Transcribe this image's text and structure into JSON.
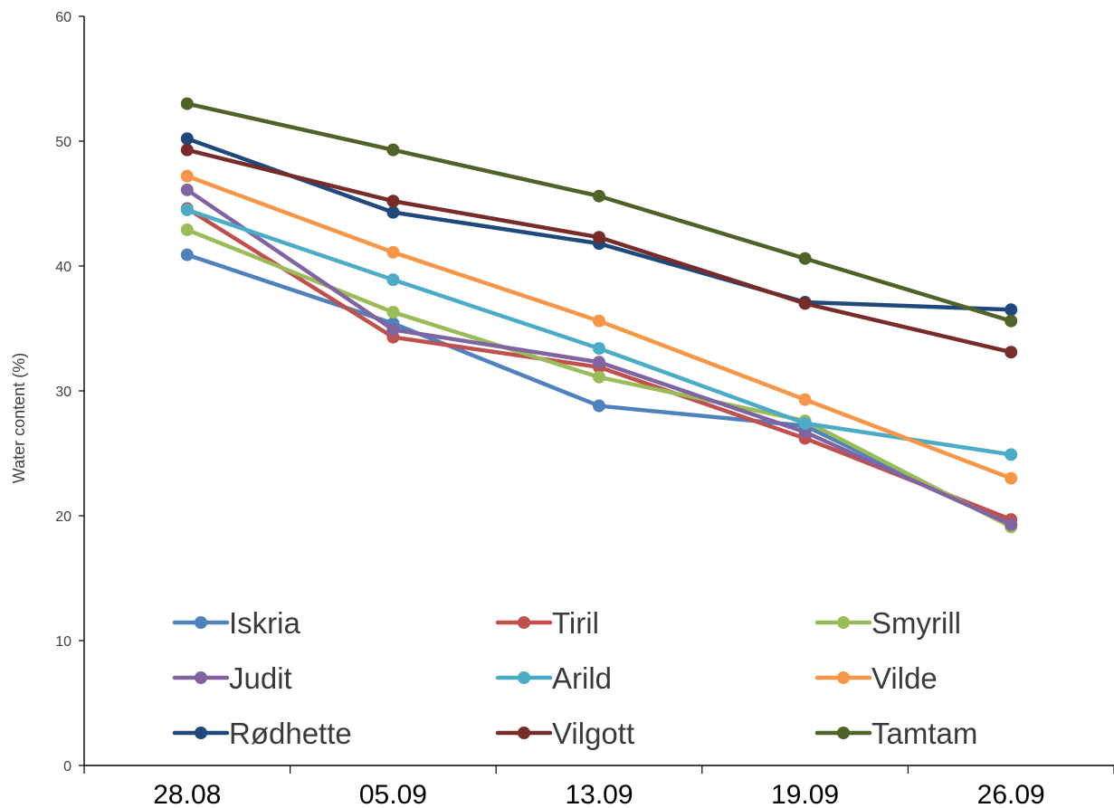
{
  "chart_data": {
    "type": "line",
    "title": "",
    "xlabel": "",
    "ylabel": "Water content (%)",
    "categories": [
      "28.08",
      "05.09",
      "13.09",
      "19.09",
      "26.09"
    ],
    "ylim": [
      0,
      60
    ],
    "yticks": [
      "0",
      "10",
      "20",
      "30",
      "40",
      "50",
      "60"
    ],
    "grid": false,
    "legend_position": "bottom-inside",
    "series": [
      {
        "name": "Iskria",
        "color": "#4F81BD",
        "values": [
          40.9,
          35.4,
          28.8,
          27.2,
          19.3
        ]
      },
      {
        "name": "Tiril",
        "color": "#C0504D",
        "values": [
          44.6,
          34.3,
          31.9,
          26.2,
          19.7
        ]
      },
      {
        "name": "Smyrill",
        "color": "#9BBB59",
        "values": [
          42.9,
          36.3,
          31.1,
          27.6,
          19.1
        ]
      },
      {
        "name": "Judit",
        "color": "#8064A2",
        "values": [
          46.1,
          34.9,
          32.3,
          26.7,
          19.3
        ]
      },
      {
        "name": "Arild",
        "color": "#4BACC6",
        "values": [
          44.5,
          38.9,
          33.4,
          27.4,
          24.9
        ]
      },
      {
        "name": "Vilde",
        "color": "#F79646",
        "values": [
          47.2,
          41.1,
          35.6,
          29.3,
          23.0
        ]
      },
      {
        "name": "Rødhette",
        "color": "#1F497D",
        "values": [
          50.2,
          44.3,
          41.8,
          37.1,
          36.5
        ]
      },
      {
        "name": "Vilgott",
        "color": "#772C2A",
        "values": [
          49.3,
          45.2,
          42.3,
          37.0,
          33.1
        ]
      },
      {
        "name": "Tamtam",
        "color": "#4F6228",
        "values": [
          53.0,
          49.3,
          45.6,
          40.6,
          35.6
        ]
      }
    ]
  }
}
